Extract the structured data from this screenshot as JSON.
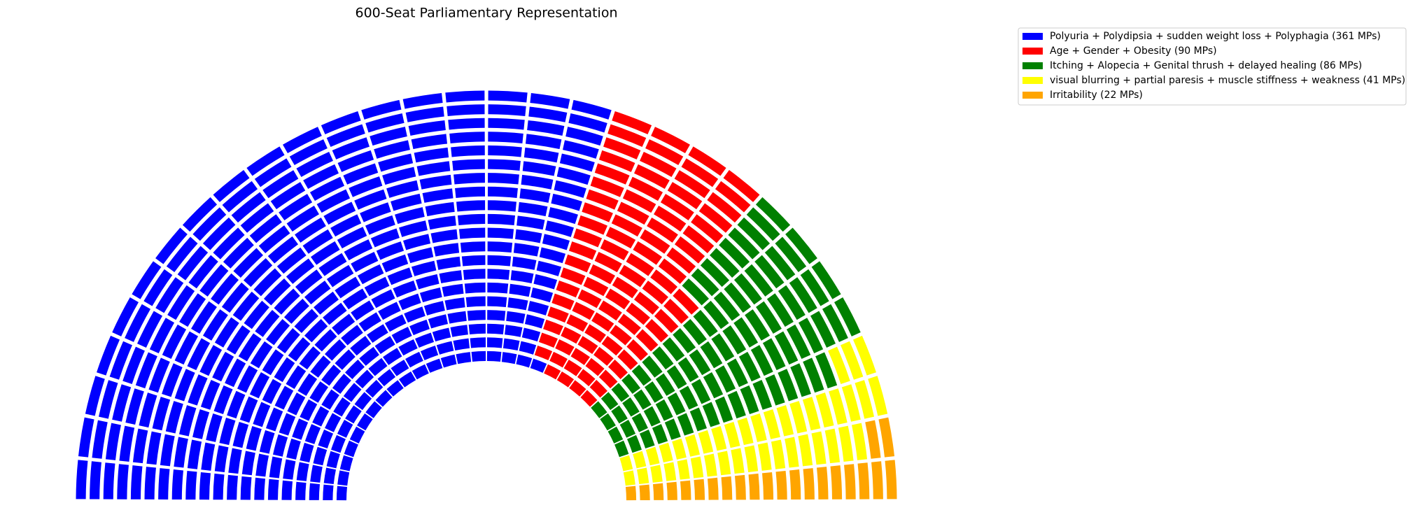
{
  "chart_data": {
    "type": "parliament",
    "title": "600-Seat Parliamentary Representation",
    "categories": [
      "Polyuria + Polydipsia + sudden weight loss + Polyphagia (361 MPs)",
      "Age + Gender + Obesity (90 MPs)",
      "Itching + Alopecia + Genital thrush + delayed healing (86 MPs)",
      "visual blurring + partial paresis + muscle stiffness + weakness (41 MPs)",
      "Irritability (22 MPs)"
    ],
    "values": [
      361,
      90,
      86,
      41,
      22
    ],
    "colors": [
      "#0000ff",
      "#ff0000",
      "#008000",
      "#ffff00",
      "#ffa500"
    ],
    "legend": "upper right"
  }
}
